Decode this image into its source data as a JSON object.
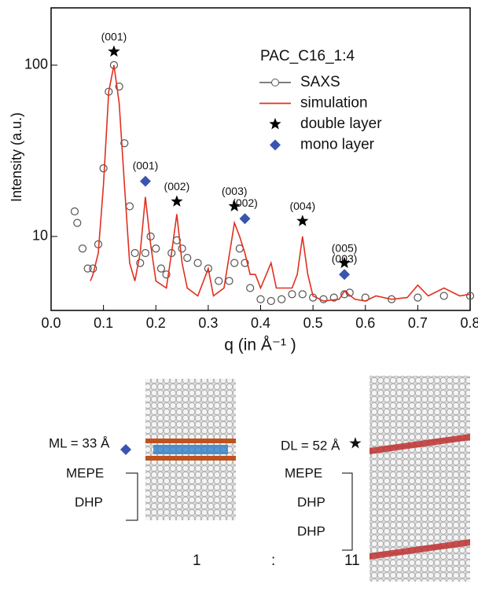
{
  "chart_data": {
    "type": "log-scatter-line",
    "y_label": "Intensity (a.u.)",
    "x_label": "q (in Å⁻¹ )",
    "xlim": [
      0,
      0.8
    ],
    "ylim": [
      3.7,
      216
    ],
    "log_y": true,
    "xticks": [
      {
        "value": 0,
        "label": "0.0"
      },
      0.1,
      0.2,
      0.3,
      0.4,
      0.5,
      0.6,
      0.7,
      0.8
    ],
    "yticks": [
      10,
      100
    ],
    "legend_title": "PAC_C16_1:4",
    "legend": "upper right",
    "series": [
      {
        "name": "SAXS",
        "style": "circles",
        "color": "#555555",
        "x": [
          0.045,
          0.05,
          0.06,
          0.07,
          0.08,
          0.09,
          0.1,
          0.11,
          0.12,
          0.13,
          0.14,
          0.15,
          0.16,
          0.17,
          0.18,
          0.19,
          0.2,
          0.21,
          0.22,
          0.23,
          0.24,
          0.25,
          0.26,
          0.28,
          0.3,
          0.32,
          0.34,
          0.35,
          0.36,
          0.37,
          0.38,
          0.4,
          0.42,
          0.44,
          0.46,
          0.48,
          0.5,
          0.52,
          0.54,
          0.56,
          0.57,
          0.6,
          0.65,
          0.7,
          0.75,
          0.8
        ],
        "values": [
          14,
          12,
          8.5,
          6.5,
          6.5,
          9,
          25,
          70,
          100,
          75,
          35,
          15,
          8,
          7,
          8,
          10,
          8.5,
          6.5,
          6,
          8,
          9.5,
          8.5,
          7.5,
          7,
          6.5,
          5.5,
          5.5,
          7,
          8.5,
          7,
          5,
          4.3,
          4.2,
          4.3,
          4.6,
          4.6,
          4.4,
          4.3,
          4.4,
          4.6,
          4.7,
          4.4,
          4.3,
          4.4,
          4.5,
          4.5
        ]
      },
      {
        "name": "simulation",
        "style": "line",
        "color": "#e0301e",
        "x": [
          0.075,
          0.08,
          0.09,
          0.1,
          0.11,
          0.12,
          0.13,
          0.14,
          0.15,
          0.16,
          0.17,
          0.18,
          0.19,
          0.2,
          0.22,
          0.23,
          0.24,
          0.25,
          0.26,
          0.28,
          0.3,
          0.31,
          0.33,
          0.35,
          0.36,
          0.37,
          0.38,
          0.39,
          0.4,
          0.42,
          0.43,
          0.46,
          0.47,
          0.48,
          0.49,
          0.5,
          0.52,
          0.55,
          0.56,
          0.58,
          0.6,
          0.62,
          0.65,
          0.68,
          0.7,
          0.72,
          0.75,
          0.78,
          0.8
        ],
        "values": [
          5.5,
          6,
          8,
          20,
          70,
          100,
          60,
          20,
          7,
          5.5,
          8,
          17,
          9,
          5.5,
          5,
          8,
          13.5,
          7,
          5,
          4.5,
          6.5,
          4.5,
          5,
          12,
          10,
          8,
          6,
          6,
          5,
          7,
          5,
          5,
          6,
          10,
          6,
          4.5,
          4.2,
          4.3,
          4.8,
          4.3,
          4.2,
          4.5,
          4.3,
          4.4,
          5.2,
          4.5,
          5,
          4.5,
          4.6
        ]
      },
      {
        "name": "double layer",
        "style": "star",
        "color": "#000000",
        "x": [
          0.12,
          0.24,
          0.35,
          0.48,
          0.56
        ],
        "values": [
          120,
          16,
          15,
          12.3,
          7
        ],
        "labels": [
          "(001)",
          "(002)",
          "(003)",
          "(004)",
          "(005)"
        ]
      },
      {
        "name": "mono layer",
        "style": "diamond",
        "color": "#3a55b0",
        "x": [
          0.18,
          0.37,
          0.56
        ],
        "values": [
          21,
          12.7,
          6
        ],
        "labels": [
          "(001)",
          "(002)",
          "(003)"
        ]
      }
    ]
  },
  "illustration": {
    "left": {
      "size": "ML = 33 Å",
      "layers": [
        "MEPE",
        "DHP"
      ],
      "ratio": "1"
    },
    "separator": ":",
    "right": {
      "size": "DL = 52 Å",
      "layers": [
        "MEPE",
        "DHP",
        "DHP"
      ],
      "ratio": "11"
    }
  }
}
